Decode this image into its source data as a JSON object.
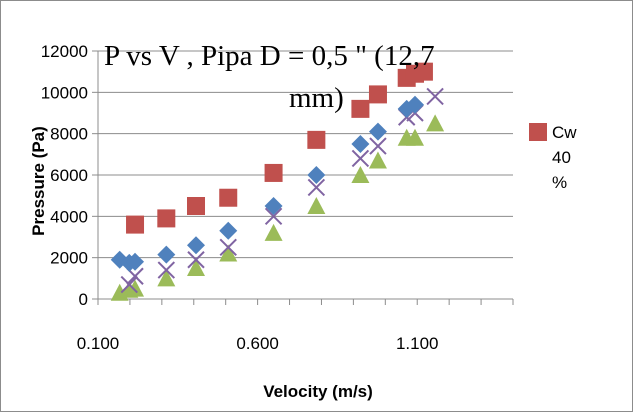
{
  "chart_data": {
    "type": "scatter",
    "title_line1": "P  vs  V , Pipa D = 0,5 \" (12,7",
    "title_line2": "mm)",
    "xlabel": "Velocity (m/s)",
    "ylabel": "Pressure (Pa)",
    "xlim": [
      0.1,
      1.4
    ],
    "ylim": [
      0,
      12000
    ],
    "x_ticks": [
      0.1,
      0.6,
      1.1
    ],
    "x_tick_labels": [
      "0.100",
      "0.600",
      "1.100"
    ],
    "y_ticks": [
      0,
      2000,
      4000,
      6000,
      8000,
      10000,
      12000
    ],
    "y_tick_labels": [
      "0",
      "2000",
      "4000",
      "6000",
      "8000",
      "10000",
      "12000"
    ],
    "grid": "horizontal",
    "legend_position": "right",
    "legend_entries": [
      {
        "label_lines": [
          "Cw",
          "40",
          "%"
        ],
        "series_index": 0
      }
    ],
    "series": [
      {
        "name": "Cw 40 %",
        "marker": "square",
        "color": "#c0504d",
        "x": [
          0.216,
          0.314,
          0.407,
          0.508,
          0.65,
          0.784,
          0.922,
          0.977,
          1.067,
          1.093,
          1.121
        ],
        "y": [
          3600,
          3900,
          4500,
          4900,
          6100,
          7700,
          9200,
          9900,
          10700,
          10900,
          11000
        ]
      },
      {
        "name": "",
        "marker": "diamond",
        "color": "#4f81bd",
        "x": [
          0.168,
          0.198,
          0.216,
          0.314,
          0.407,
          0.508,
          0.65,
          0.784,
          0.922,
          0.977,
          1.067,
          1.093
        ],
        "y": [
          1900,
          1750,
          1800,
          2150,
          2600,
          3300,
          4500,
          6000,
          7500,
          8100,
          9200,
          9400
        ]
      },
      {
        "name": "",
        "marker": "x",
        "color": "#8064a2",
        "x": [
          0.198,
          0.216,
          0.314,
          0.407,
          0.508,
          0.65,
          0.784,
          0.922,
          0.977,
          1.067,
          1.093,
          1.156
        ],
        "y": [
          700,
          1100,
          1400,
          1900,
          2500,
          4000,
          5400,
          6800,
          7400,
          8800,
          9000,
          9800
        ]
      },
      {
        "name": "",
        "marker": "triangle",
        "color": "#9bbb59",
        "x": [
          0.168,
          0.198,
          0.216,
          0.314,
          0.407,
          0.508,
          0.65,
          0.784,
          0.922,
          0.977,
          1.067,
          1.093,
          1.156
        ],
        "y": [
          300,
          450,
          500,
          1000,
          1500,
          2200,
          3200,
          4500,
          6000,
          6700,
          7800,
          7800,
          8500
        ]
      }
    ]
  }
}
